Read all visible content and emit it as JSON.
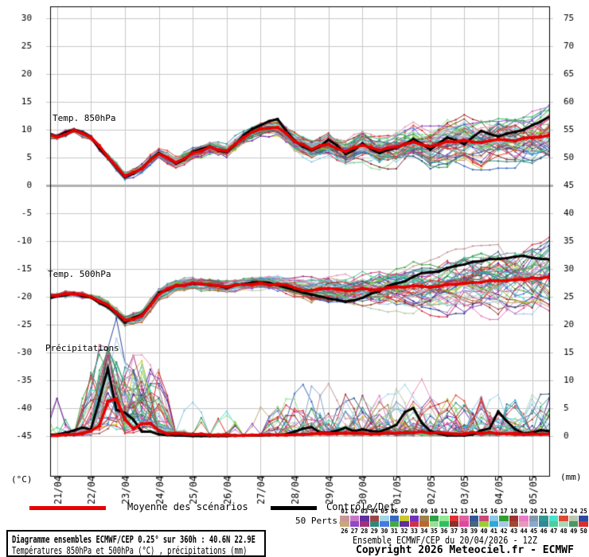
{
  "chart": {
    "unit_left": "(°C)",
    "unit_right": "(mm)",
    "left_ticks": [
      "30",
      "25",
      "20",
      "15",
      "10",
      "5",
      "0",
      "-5",
      "-10",
      "-15",
      "-20",
      "-25",
      "-30",
      "-35",
      "-40",
      "-45"
    ],
    "right_ticks": [
      "75",
      "70",
      "65",
      "60",
      "55",
      "50",
      "45",
      "40",
      "35",
      "30",
      "25",
      "20",
      "15",
      "10",
      "5",
      "0"
    ],
    "dates": [
      "21/04",
      "22/04",
      "23/04",
      "24/04",
      "25/04",
      "26/04",
      "27/04",
      "28/04",
      "29/04",
      "30/04",
      "01/05",
      "02/05",
      "03/05",
      "04/05",
      "05/05"
    ],
    "panel_labels": {
      "t850": "Temp. 850hPa",
      "t500": "Temp. 500hPa",
      "precip": "Précipitations"
    },
    "grid_color": "#c8c8c8",
    "zero_line_color": "#b0b0b0"
  },
  "legend": {
    "mean_label": "Moyenne des scénarios",
    "control_label": "Contrôle/Det",
    "perts_label": "50 Perts.",
    "mean_color": "#e60000",
    "control_color": "#000000"
  },
  "members": {
    "count": 50,
    "labels": [
      "01",
      "02",
      "03",
      "04",
      "05",
      "06",
      "07",
      "08",
      "09",
      "10",
      "11",
      "12",
      "13",
      "14",
      "15",
      "16",
      "17",
      "18",
      "19",
      "20",
      "21",
      "22",
      "23",
      "24",
      "25",
      "26",
      "27",
      "28",
      "29",
      "30",
      "31",
      "32",
      "33",
      "34",
      "35",
      "36",
      "37",
      "38",
      "39",
      "40",
      "41",
      "42",
      "43",
      "44",
      "45",
      "46",
      "47",
      "48",
      "49",
      "50"
    ],
    "colors": [
      "#c89898",
      "#c878c8",
      "#6030a0",
      "#984848",
      "#a0d8e8",
      "#3868c0",
      "#c8c830",
      "#7030c0",
      "#a08048",
      "#30a048",
      "#90e890",
      "#e03030",
      "#e060a0",
      "#305898",
      "#c84878",
      "#88c8e8",
      "#30a030",
      "#a03030",
      "#e878c8",
      "#8098a8",
      "#309890",
      "#48e0d0",
      "#e04830",
      "#b8c8a8",
      "#3048a0",
      "#c8a878",
      "#9048c8",
      "#a03078",
      "#308878",
      "#4878e0",
      "#48a848",
      "#603098",
      "#d03048",
      "#b86830",
      "#98e098",
      "#30c060",
      "#883030",
      "#e048a0",
      "#486878",
      "#98d030",
      "#30a8d8",
      "#a8c8e8",
      "#a04830",
      "#e898b8",
      "#88a8d0",
      "#308898",
      "#48d098",
      "#a8d8b8",
      "#489868",
      "#d83030"
    ]
  },
  "footer": {
    "title_line1": "Diagramme ensembles ECMWF/CEP 0.25° sur 360h : 40.6N 22.9E",
    "title_line2": "Températures 850hPa et 500hPa (°C) , précipitations (mm)",
    "run_info": "Ensemble ECMWF/CEP du 20/04/2026 - 12Z",
    "copyright": "Copyright 2026 Meteociel.fr - ECMWF"
  },
  "chart_data": {
    "type": "line",
    "step_hours": 12,
    "total_hours": 360,
    "x_axis_dates": [
      "21/04",
      "22/04",
      "23/04",
      "24/04",
      "25/04",
      "26/04",
      "27/04",
      "28/04",
      "29/04",
      "30/04",
      "01/05",
      "02/05",
      "03/05",
      "04/05",
      "05/05"
    ],
    "ylim_left_celsius": [
      -45,
      30
    ],
    "ylim_right_mm": [
      0,
      75
    ],
    "t850_mean": [
      9.3,
      8.7,
      9.9,
      8.6,
      5.1,
      1.7,
      3.0,
      5.6,
      4.1,
      5.8,
      6.9,
      6.2,
      8.6,
      10.1,
      10.4,
      7.9,
      6.5,
      7.4,
      6.1,
      7.2,
      6.3,
      6.9,
      7.8,
      7.0,
      7.9,
      8.1,
      7.7,
      8.3,
      8.0,
      8.6,
      9.0
    ],
    "t850_control": [
      9.4,
      8.8,
      10.0,
      8.7,
      5.0,
      1.5,
      3.1,
      5.8,
      3.9,
      6.0,
      7.0,
      6.0,
      9.0,
      10.8,
      11.9,
      8.0,
      6.3,
      8.2,
      5.6,
      7.5,
      5.8,
      6.7,
      8.3,
      6.4,
      8.6,
      7.4,
      9.8,
      8.8,
      9.6,
      10.8,
      12.3
    ],
    "t850_spread": [
      0.3,
      0.4,
      0.4,
      0.5,
      0.8,
      1.0,
      1.0,
      1.0,
      1.1,
      1.2,
      1.3,
      1.4,
      1.5,
      1.7,
      1.9,
      2.2,
      2.6,
      2.9,
      3.2,
      3.4,
      3.6,
      3.9,
      4.2,
      4.4,
      4.6,
      4.8,
      5.0,
      5.2,
      5.5,
      5.8,
      6.2
    ],
    "t500_mean": [
      -20.2,
      -19.8,
      -19.5,
      -20.0,
      -21.5,
      -24.2,
      -23.4,
      -19.6,
      -18.0,
      -17.5,
      -17.8,
      -18.2,
      -17.8,
      -17.5,
      -17.8,
      -18.4,
      -18.9,
      -18.5,
      -18.9,
      -18.5,
      -18.7,
      -18.2,
      -18.0,
      -18.3,
      -17.8,
      -17.6,
      -17.4,
      -17.1,
      -16.9,
      -16.6,
      -16.4
    ],
    "t500_control": [
      -20.3,
      -19.9,
      -19.4,
      -20.1,
      -21.8,
      -24.6,
      -23.2,
      -19.3,
      -18.0,
      -17.6,
      -17.9,
      -18.4,
      -17.7,
      -17.4,
      -17.9,
      -18.8,
      -19.6,
      -20.3,
      -20.9,
      -20.2,
      -19.0,
      -17.6,
      -16.4,
      -15.6,
      -14.8,
      -14.2,
      -13.6,
      -13.2,
      -12.8,
      -13.0,
      -13.3
    ],
    "t500_spread": [
      0.3,
      0.4,
      0.4,
      0.5,
      0.9,
      1.3,
      1.2,
      1.0,
      0.9,
      1.0,
      1.1,
      1.2,
      1.3,
      1.5,
      1.8,
      2.2,
      2.6,
      3.0,
      3.4,
      3.8,
      4.2,
      4.6,
      5.0,
      5.4,
      5.8,
      6.2,
      6.6,
      7.0,
      7.4,
      7.8,
      8.2
    ],
    "precip_mean": [
      0,
      0.1,
      0.3,
      0.9,
      6.3,
      3.0,
      2.2,
      1.0,
      0.5,
      0.3,
      0.2,
      0.2,
      0.1,
      0.2,
      0.2,
      0.3,
      0.4,
      0.5,
      0.5,
      0.5,
      0.4,
      0.5,
      0.6,
      0.5,
      0.5,
      0.4,
      0.5,
      0.4,
      0.5,
      0.4,
      0.4
    ],
    "precip_control": [
      0,
      0.3,
      1.0,
      1.2,
      12.2,
      4.2,
      0.8,
      0.3,
      0.1,
      0,
      0,
      0,
      0.1,
      0.1,
      0.2,
      0.8,
      1.6,
      0.6,
      1.5,
      1.2,
      0.8,
      2.0,
      5.0,
      0.9,
      0.1,
      0.1,
      1.0,
      4.4,
      1.2,
      0.6,
      0.9
    ]
  }
}
